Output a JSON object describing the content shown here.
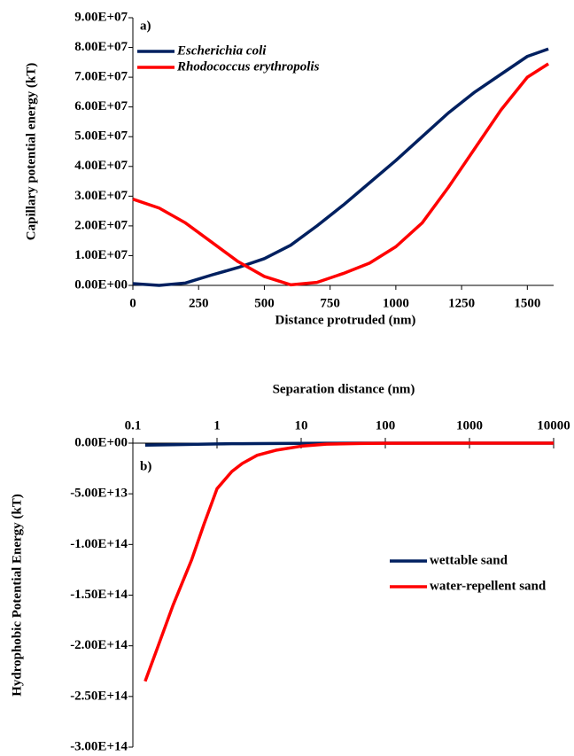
{
  "chart_data": [
    {
      "type": "line",
      "annotation": "a)",
      "x_label": "Distance protruded (nm)",
      "y_label": "Capillary potential energy (kT)",
      "x": [
        0,
        100,
        200,
        300,
        400,
        500,
        600,
        700,
        800,
        900,
        1000,
        1100,
        1200,
        1300,
        1400,
        1500,
        1580
      ],
      "series": [
        {
          "name": "Escherichia coli",
          "color": "#002060",
          "values": [
            600000.0,
            0,
            800000.0,
            3500000.0,
            6000000.0,
            9000000.0,
            13500000.0,
            20000000.0,
            27000000.0,
            34500000.0,
            42000000.0,
            50000000.0,
            58000000.0,
            65000000.0,
            71000000.0,
            77000000.0,
            79500000.0
          ]
        },
        {
          "name": "Rhodococcus erythropolis",
          "color": "#ff0000",
          "values": [
            29000000.0,
            26000000.0,
            21000000.0,
            14500000.0,
            8000000.0,
            3000000.0,
            200000.0,
            1000000.0,
            4000000.0,
            7500000.0,
            13000000.0,
            21000000.0,
            33000000.0,
            46000000.0,
            59000000.0,
            70000000.0,
            74500000.0
          ]
        }
      ],
      "xscale": "linear",
      "x_axis_position": "bottom",
      "legend": "upper left",
      "xlim": [
        0,
        1600
      ],
      "xticks": [
        0,
        250,
        500,
        750,
        1000,
        1250,
        1500
      ],
      "ylim": [
        0,
        90000000
      ],
      "yticks": [
        {
          "value": 0,
          "label": "0.00E+00"
        },
        {
          "value": 10000000,
          "label": "1.00E+07"
        },
        {
          "value": 20000000,
          "label": "2.00E+07"
        },
        {
          "value": 30000000,
          "label": "3.00E+07"
        },
        {
          "value": 40000000,
          "label": "4.00E+07"
        },
        {
          "value": 50000000,
          "label": "5.00E+07"
        },
        {
          "value": 60000000,
          "label": "6.00E+07"
        },
        {
          "value": 70000000,
          "label": "7.00E+07"
        },
        {
          "value": 80000000,
          "label": "8.00E+07"
        },
        {
          "value": 90000000,
          "label": "9.00E+07"
        }
      ]
    },
    {
      "type": "line",
      "annotation": "b)",
      "x_label": "Separation distance (nm)",
      "y_label": "Hydrophobic Potential  Energy (kT)",
      "x": [
        0.14,
        0.2,
        0.3,
        0.5,
        0.7,
        1,
        1.5,
        2,
        3,
        5,
        10,
        20,
        50,
        100,
        1000,
        10000
      ],
      "series": [
        {
          "name": "wettable sand",
          "color": "#002060",
          "values": [
            -2000000000000.0,
            -1800000000000.0,
            -1500000000000.0,
            -1200000000000.0,
            -1000000000000.0,
            -800000000000.0,
            -600000000000.0,
            -500000000000.0,
            -400000000000.0,
            -300000000000.0,
            -200000000000.0,
            -100000000000.0,
            -50000000000.0,
            -20000000000.0,
            -2000000000.0,
            -200000000.0
          ]
        },
        {
          "name": "water-repellent sand",
          "color": "#ff0000",
          "values": [
            -235000000000000.0,
            -200000000000000.0,
            -160000000000000.0,
            -115000000000000.0,
            -80000000000000.0,
            -45000000000000.0,
            -28000000000000.0,
            -20000000000000.0,
            -12000000000000.0,
            -7000000000000.0,
            -3000000000000.0,
            -1000000000000.0,
            -300000000000.0,
            -100000000000.0,
            -10000000000.0,
            -1000000000.0
          ]
        }
      ],
      "xscale": "log",
      "x_axis_position": "top",
      "legend": "right",
      "xlim": [
        0.1,
        10000
      ],
      "xticks": [
        0.1,
        1,
        10,
        100,
        1000,
        10000
      ],
      "ylim": [
        -300000000000000,
        0
      ],
      "yticks": [
        {
          "value": 0,
          "label": "0.00E+00"
        },
        {
          "value": -50000000000000,
          "label": "-5.00E+13"
        },
        {
          "value": -100000000000000,
          "label": "-1.00E+14"
        },
        {
          "value": -150000000000000,
          "label": "-1.50E+14"
        },
        {
          "value": -200000000000000,
          "label": "-2.00E+14"
        },
        {
          "value": -250000000000000,
          "label": "-2.50E+14"
        },
        {
          "value": -300000000000000,
          "label": "-3.00E+14"
        }
      ]
    }
  ]
}
